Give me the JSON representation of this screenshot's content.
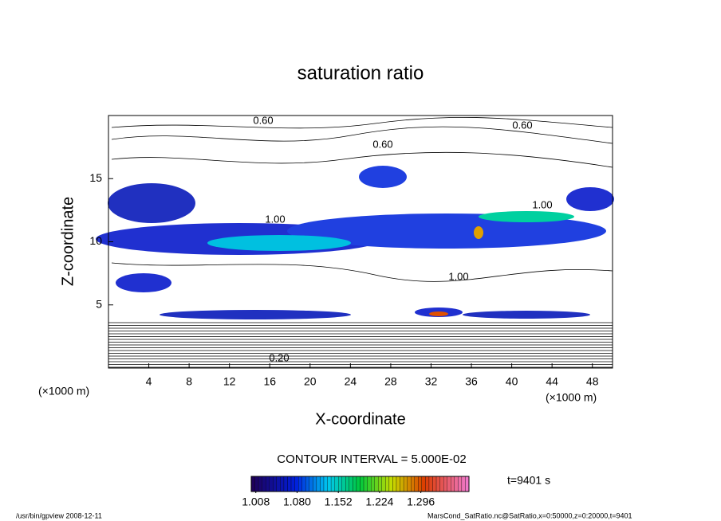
{
  "chart_data": {
    "type": "contour",
    "title": "saturation ratio",
    "x_label": "X-coordinate",
    "y_label": "Z-coordinate",
    "x_unit": "(×1000 m)",
    "y_unit": "(×1000 m)",
    "xlim": [
      0,
      50
    ],
    "xticks": [
      4,
      8,
      12,
      16,
      20,
      24,
      28,
      32,
      36,
      40,
      44,
      48
    ],
    "ylim": [
      0,
      20
    ],
    "yticks": [
      5,
      10,
      15
    ],
    "contour_interval_label": "CONTOUR INTERVAL = 5.000E-02",
    "contour_labels": [
      "0.60",
      "0.60",
      "0.60",
      "1.00",
      "1.00",
      "1.00",
      "0.20"
    ],
    "clim": [
      1.0,
      1.38
    ],
    "cticks": [
      {
        "value": 1.008,
        "label": "1.008"
      },
      {
        "value": 1.08,
        "label": "1.080"
      },
      {
        "value": 1.152,
        "label": "1.152"
      },
      {
        "value": 1.224,
        "label": "1.224"
      },
      {
        "value": 1.296,
        "label": "1.296"
      }
    ],
    "time_label": "t=9401 s",
    "footer_left": "/usr/bin/gpview  2008-12-11",
    "footer_right": "MarsCond_SatRatio.nc@SatRatio,x=0:50000,z=0:20000,t=9401"
  }
}
